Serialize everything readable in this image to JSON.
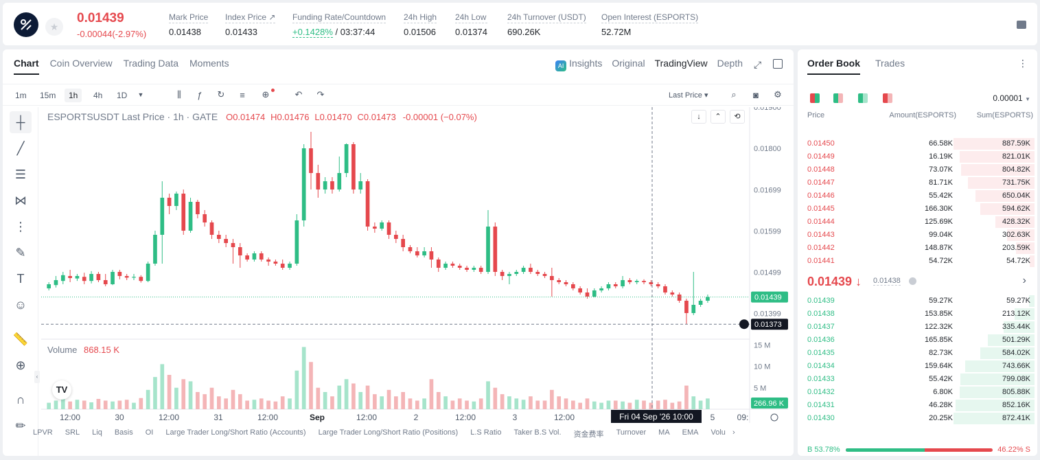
{
  "ticker": {
    "last_price": "0.01439",
    "change": "-0.00044(-2.97%)"
  },
  "stats": [
    {
      "label": "Mark Price",
      "value": "0.01438"
    },
    {
      "label": "Index Price ↗",
      "value": "0.01433"
    },
    {
      "label": "Funding Rate/Countdown",
      "value_pos": "+0.1428%",
      "value": " / 03:37:44"
    },
    {
      "label": "24h High",
      "value": "0.01506"
    },
    {
      "label": "24h Low",
      "value": "0.01374"
    },
    {
      "label": "24h Turnover (USDT)",
      "value": "690.26K"
    },
    {
      "label": "Open Interest (ESPORTS)",
      "value": "52.72M"
    }
  ],
  "chart_tabs": [
    "Chart",
    "Coin Overview",
    "Trading Data",
    "Moments"
  ],
  "view_tabs": {
    "insights": "Insights",
    "original": "Original",
    "tradingview": "TradingView",
    "depth": "Depth"
  },
  "timeframes": [
    "1m",
    "15m",
    "1h",
    "4h",
    "1D"
  ],
  "price_type": "Last Price",
  "legend": {
    "symbol": "ESPORTSUSDT Last Price · 1h · GATE",
    "o": "O0.01474",
    "h": "H0.01476",
    "l": "L0.01470",
    "c": "C0.01473",
    "chg": "-0.00001 (−0.07%)"
  },
  "volume_legend": {
    "label": "Volume",
    "value": "868.15 K"
  },
  "price_ticks": [
    "0.01900",
    "0.01800",
    "0.01699",
    "0.01599",
    "0.01499",
    "0.01399"
  ],
  "volume_ticks": [
    "15 M",
    "10 M",
    "5 M"
  ],
  "price_labels": {
    "current": "0.01439",
    "cursor": "0.01373",
    "volume": "266.96 K"
  },
  "time_ticks": [
    "12:00",
    "30",
    "12:00",
    "31",
    "12:00",
    "Sep",
    "12:00",
    "2",
    "12:00",
    "3",
    "12:00",
    "5",
    "09:"
  ],
  "crosshair_time": "Fri 04 Sep '26   10:00",
  "indicators": [
    "LPVR",
    "SRL",
    "Liq",
    "Basis",
    "OI",
    "Large Trader Long/Short Ratio (Accounts)",
    "Large Trader Long/Short Ratio (Positions)",
    "L.S Ratio",
    "Taker B.S Vol.",
    "资金费率",
    "Turnover",
    "MA",
    "EMA",
    "Volu"
  ],
  "chart_data": {
    "type": "candlestick",
    "ylim": [
      0.0134,
      0.019
    ],
    "candles": [
      [
        0.0146,
        0.0147,
        0.01455,
        0.01475
      ],
      [
        0.01468,
        0.0148,
        0.01462,
        0.0149
      ],
      [
        0.01478,
        0.01492,
        0.0147,
        0.015
      ],
      [
        0.0149,
        0.01485,
        0.01475,
        0.01505
      ],
      [
        0.01484,
        0.0149,
        0.01478,
        0.01495
      ],
      [
        0.01488,
        0.01478,
        0.0147,
        0.01498
      ],
      [
        0.01478,
        0.01495,
        0.01472,
        0.01502
      ],
      [
        0.01495,
        0.0148,
        0.01475,
        0.015
      ],
      [
        0.0148,
        0.0147,
        0.01465,
        0.01495
      ],
      [
        0.0147,
        0.015,
        0.01468,
        0.01505
      ],
      [
        0.015,
        0.0149,
        0.01482,
        0.01505
      ],
      [
        0.0149,
        0.01486,
        0.0148,
        0.01495
      ],
      [
        0.01486,
        0.01488,
        0.0148,
        0.01495
      ],
      [
        0.01488,
        0.01478,
        0.01474,
        0.01492
      ],
      [
        0.01478,
        0.0152,
        0.01475,
        0.01525
      ],
      [
        0.0152,
        0.0159,
        0.01515,
        0.016
      ],
      [
        0.0159,
        0.0168,
        0.0152,
        0.0172
      ],
      [
        0.0168,
        0.0166,
        0.0164,
        0.0169
      ],
      [
        0.0166,
        0.0169,
        0.0165,
        0.01695
      ],
      [
        0.0169,
        0.016,
        0.0159,
        0.017
      ],
      [
        0.016,
        0.0167,
        0.01595,
        0.0168
      ],
      [
        0.0167,
        0.0164,
        0.0163,
        0.01675
      ],
      [
        0.0164,
        0.0162,
        0.0161,
        0.0165
      ],
      [
        0.0162,
        0.0159,
        0.0158,
        0.01625
      ],
      [
        0.0159,
        0.0158,
        0.0157,
        0.016
      ],
      [
        0.0158,
        0.0157,
        0.0156,
        0.0159
      ],
      [
        0.0157,
        0.0156,
        0.0152,
        0.0158
      ],
      [
        0.0156,
        0.0154,
        0.0151,
        0.0157
      ],
      [
        0.0154,
        0.0153,
        0.01525,
        0.01545
      ],
      [
        0.0153,
        0.01545,
        0.01525,
        0.0155
      ],
      [
        0.01545,
        0.0153,
        0.01525,
        0.0155
      ],
      [
        0.0153,
        0.01525,
        0.01515,
        0.01535
      ],
      [
        0.01525,
        0.0152,
        0.01515,
        0.0153
      ],
      [
        0.0152,
        0.0151,
        0.01505,
        0.0153
      ],
      [
        0.0151,
        0.0152,
        0.01505,
        0.01525
      ],
      [
        0.0152,
        0.01625,
        0.01515,
        0.0164
      ],
      [
        0.01625,
        0.018,
        0.0161,
        0.0181
      ],
      [
        0.018,
        0.0174,
        0.017,
        0.0184
      ],
      [
        0.0174,
        0.017,
        0.0168,
        0.0176
      ],
      [
        0.017,
        0.0172,
        0.0169,
        0.0173
      ],
      [
        0.0172,
        0.017,
        0.0169,
        0.0173
      ],
      [
        0.017,
        0.0174,
        0.01695,
        0.0178
      ],
      [
        0.0174,
        0.0181,
        0.0173,
        0.01812
      ],
      [
        0.0181,
        0.017,
        0.0169,
        0.01815
      ],
      [
        0.017,
        0.0172,
        0.0169,
        0.0174
      ],
      [
        0.0172,
        0.0161,
        0.016,
        0.01725
      ],
      [
        0.0161,
        0.01605,
        0.01595,
        0.0162
      ],
      [
        0.01605,
        0.0162,
        0.016,
        0.01625
      ],
      [
        0.0162,
        0.0159,
        0.0158,
        0.01625
      ],
      [
        0.0159,
        0.0158,
        0.0157,
        0.016
      ],
      [
        0.0158,
        0.0156,
        0.0155,
        0.0159
      ],
      [
        0.0156,
        0.0155,
        0.01545,
        0.01565
      ],
      [
        0.0155,
        0.0154,
        0.01535,
        0.0156
      ],
      [
        0.0154,
        0.0155,
        0.01535,
        0.0156
      ],
      [
        0.0155,
        0.0153,
        0.0151,
        0.0156
      ],
      [
        0.0153,
        0.0151,
        0.015,
        0.01535
      ],
      [
        0.0151,
        0.0152,
        0.01505,
        0.01525
      ],
      [
        0.0152,
        0.01515,
        0.0151,
        0.01525
      ],
      [
        0.01515,
        0.0151,
        0.01505,
        0.0152
      ],
      [
        0.0151,
        0.01505,
        0.015,
        0.01515
      ],
      [
        0.01505,
        0.0151,
        0.015,
        0.01515
      ],
      [
        0.0151,
        0.015,
        0.01495,
        0.01515
      ],
      [
        0.015,
        0.0161,
        0.01495,
        0.0165
      ],
      [
        0.0161,
        0.015,
        0.0149,
        0.0162
      ],
      [
        0.015,
        0.0149,
        0.0148,
        0.01505
      ],
      [
        0.0149,
        0.01495,
        0.0147,
        0.015
      ],
      [
        0.01495,
        0.015,
        0.0149,
        0.01505
      ],
      [
        0.015,
        0.0151,
        0.01495,
        0.01515
      ],
      [
        0.0151,
        0.015,
        0.01495,
        0.0152
      ],
      [
        0.015,
        0.01495,
        0.0149,
        0.01505
      ],
      [
        0.01495,
        0.0149,
        0.01485,
        0.015
      ],
      [
        0.0149,
        0.0148,
        0.0144,
        0.0151
      ],
      [
        0.0148,
        0.01475,
        0.0147,
        0.01485
      ],
      [
        0.01475,
        0.0147,
        0.01465,
        0.0148
      ],
      [
        0.0147,
        0.0146,
        0.01455,
        0.01475
      ],
      [
        0.0146,
        0.0145,
        0.01445,
        0.01465
      ],
      [
        0.0145,
        0.0144,
        0.01435,
        0.0146
      ],
      [
        0.0144,
        0.01455,
        0.01438,
        0.0146
      ],
      [
        0.01455,
        0.0146,
        0.0145,
        0.01465
      ],
      [
        0.0146,
        0.0147,
        0.01455,
        0.01475
      ],
      [
        0.0147,
        0.01465,
        0.0146,
        0.01475
      ],
      [
        0.01465,
        0.0148,
        0.0146,
        0.0149
      ],
      [
        0.0148,
        0.01475,
        0.0147,
        0.01485
      ],
      [
        0.01475,
        0.01478,
        0.0147,
        0.01482
      ],
      [
        0.01478,
        0.01475,
        0.0147,
        0.01482
      ],
      [
        0.01475,
        0.0147,
        0.01465,
        0.0148
      ],
      [
        0.0147,
        0.01465,
        0.0146,
        0.01475
      ],
      [
        0.01465,
        0.0145,
        0.01445,
        0.0147
      ],
      [
        0.0145,
        0.01445,
        0.0144,
        0.01455
      ],
      [
        0.01445,
        0.0143,
        0.01425,
        0.0145
      ],
      [
        0.0143,
        0.014,
        0.01373,
        0.01435
      ],
      [
        0.014,
        0.0142,
        0.01395,
        0.015
      ],
      [
        0.0142,
        0.0143,
        0.01415,
        0.01435
      ],
      [
        0.0143,
        0.01439,
        0.01425,
        0.01445
      ]
    ],
    "volumes": [
      1.5,
      2.0,
      2.5,
      1.8,
      2.2,
      2.0,
      1.6,
      2.4,
      2.0,
      1.8,
      2.0,
      2.2,
      1.5,
      2.6,
      4.5,
      7.5,
      10.5,
      8.0,
      5.0,
      7.0,
      6.5,
      4.0,
      3.5,
      5.0,
      3.0,
      2.5,
      4.5,
      3.5,
      2.0,
      2.2,
      2.5,
      2.0,
      1.8,
      3.0,
      2.5,
      9.0,
      14.5,
      11.0,
      5.0,
      4.0,
      3.0,
      5.5,
      7.0,
      6.0,
      4.0,
      5.5,
      3.5,
      3.0,
      4.5,
      3.0,
      4.0,
      2.5,
      2.0,
      2.5,
      7.0,
      4.0,
      3.0,
      2.0,
      2.5,
      2.0,
      1.8,
      2.5,
      6.5,
      5.0,
      3.5,
      3.0,
      2.5,
      2.2,
      3.0,
      2.0,
      2.0,
      4.5,
      3.0,
      2.5,
      2.0,
      1.5,
      2.5,
      1.8,
      1.5,
      2.0,
      2.0,
      1.8,
      1.5,
      2.2,
      2.0,
      1.5,
      2.0,
      2.2,
      1.5,
      1.8,
      5.5,
      3.0,
      2.0,
      2.5
    ]
  },
  "orderbook": {
    "tabs": [
      "Order Book",
      "Trades"
    ],
    "precision": "0.00001",
    "cols": {
      "price": "Price",
      "amount": "Amount(ESPORTS)",
      "sum": "Sum(ESPORTS)"
    },
    "asks": [
      {
        "p": "0.01450",
        "a": "66.58K",
        "s": "887.59K",
        "d": 1.0
      },
      {
        "p": "0.01449",
        "a": "16.19K",
        "s": "821.01K",
        "d": 0.925
      },
      {
        "p": "0.01448",
        "a": "73.07K",
        "s": "804.82K",
        "d": 0.907
      },
      {
        "p": "0.01447",
        "a": "81.71K",
        "s": "731.75K",
        "d": 0.824
      },
      {
        "p": "0.01446",
        "a": "55.42K",
        "s": "650.04K",
        "d": 0.732
      },
      {
        "p": "0.01445",
        "a": "166.30K",
        "s": "594.62K",
        "d": 0.67
      },
      {
        "p": "0.01444",
        "a": "125.69K",
        "s": "428.32K",
        "d": 0.483
      },
      {
        "p": "0.01443",
        "a": "99.04K",
        "s": "302.63K",
        "d": 0.341
      },
      {
        "p": "0.01442",
        "a": "148.87K",
        "s": "203.59K",
        "d": 0.229
      },
      {
        "p": "0.01441",
        "a": "54.72K",
        "s": "54.72K",
        "d": 0.062
      }
    ],
    "mid_price": "0.01439 ↓",
    "mark": "0.01438",
    "bids": [
      {
        "p": "0.01439",
        "a": "59.27K",
        "s": "59.27K",
        "d": 0.068
      },
      {
        "p": "0.01438",
        "a": "153.85K",
        "s": "213.12K",
        "d": 0.244
      },
      {
        "p": "0.01437",
        "a": "122.32K",
        "s": "335.44K",
        "d": 0.385
      },
      {
        "p": "0.01436",
        "a": "165.85K",
        "s": "501.29K",
        "d": 0.575
      },
      {
        "p": "0.01435",
        "a": "82.73K",
        "s": "584.02K",
        "d": 0.67
      },
      {
        "p": "0.01434",
        "a": "159.64K",
        "s": "743.66K",
        "d": 0.853
      },
      {
        "p": "0.01433",
        "a": "55.42K",
        "s": "799.08K",
        "d": 0.917
      },
      {
        "p": "0.01432",
        "a": "6.80K",
        "s": "805.88K",
        "d": 0.925
      },
      {
        "p": "0.01431",
        "a": "46.28K",
        "s": "852.16K",
        "d": 0.978
      },
      {
        "p": "0.01430",
        "a": "20.25K",
        "s": "872.41K",
        "d": 1.0
      }
    ],
    "buy_pct": "B 53.78%",
    "sell_pct": "46.22% S",
    "buy_ratio": 0.5378
  },
  "colors": {
    "up": "#2ebd85",
    "down": "#e5484d"
  }
}
